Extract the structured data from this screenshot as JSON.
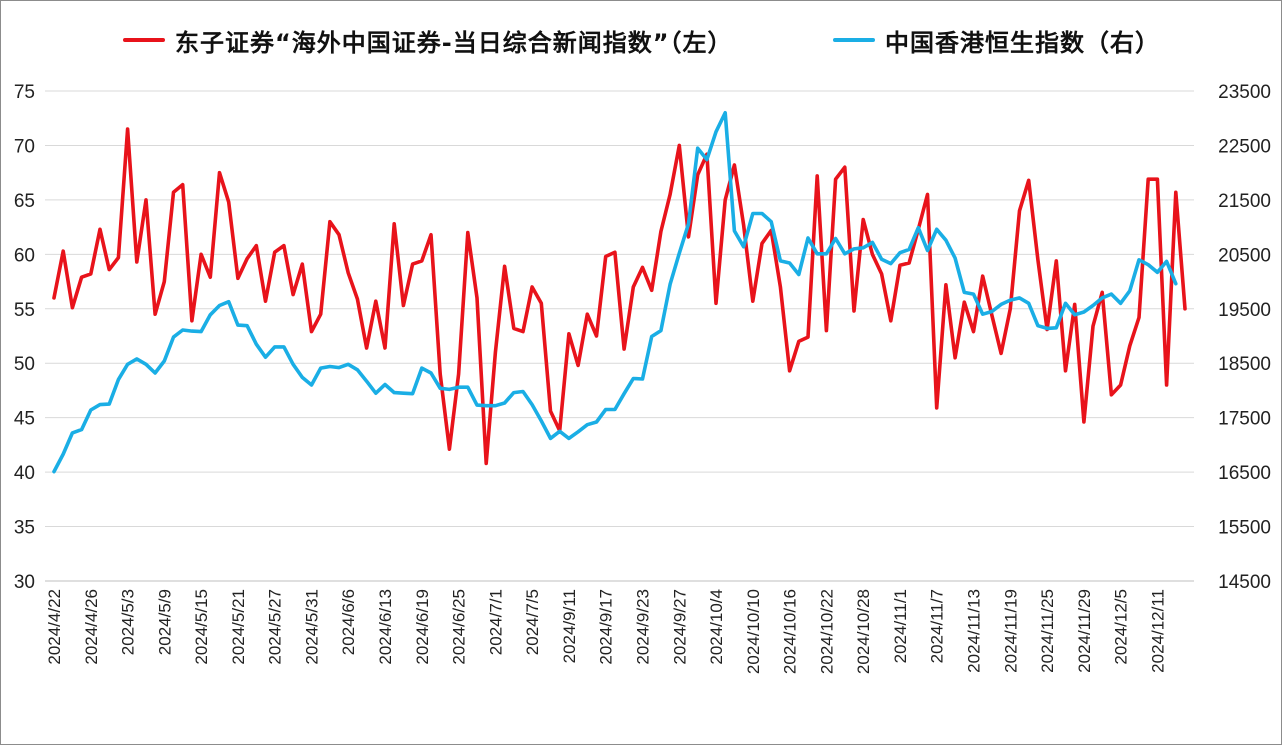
{
  "chart_data": {
    "type": "line",
    "legend_position": "top",
    "grid": true,
    "colors": {
      "left_series": "#e8131b",
      "right_series": "#1aaee5",
      "grid": "#d9d9d9"
    },
    "left_axis": {
      "ylim": [
        30,
        75
      ],
      "ticks": [
        "30",
        "35",
        "40",
        "45",
        "50",
        "55",
        "60",
        "65",
        "70",
        "75"
      ]
    },
    "right_axis": {
      "ylim": [
        14500,
        23500
      ],
      "ticks": [
        "14500",
        "15500",
        "16500",
        "17500",
        "18500",
        "19500",
        "20500",
        "21500",
        "22500",
        "23500"
      ]
    },
    "x_tick_labels": [
      "2024/4/22",
      "2024/4/26",
      "2024/5/3",
      "2024/5/9",
      "2024/5/15",
      "2024/5/21",
      "2024/5/27",
      "2024/5/31",
      "2024/6/6",
      "2024/6/13",
      "2024/6/19",
      "2024/6/25",
      "2024/7/1",
      "2024/7/5",
      "2024/9/11",
      "2024/9/17",
      "2024/9/23",
      "2024/9/27",
      "2024/10/4",
      "2024/10/10",
      "2024/10/16",
      "2024/10/22",
      "2024/10/28",
      "2024/11/1",
      "2024/11/7",
      "2024/11/13",
      "2024/11/19",
      "2024/11/25",
      "2024/11/29",
      "2024/12/5",
      "2024/12/11"
    ],
    "series": [
      {
        "name": "东子证券“海外中国证券-当日综合新闻指数”（左）",
        "axis": "left",
        "values": [
          56.0,
          60.3,
          55.1,
          57.9,
          58.2,
          62.3,
          58.6,
          59.7,
          71.5,
          59.3,
          65.0,
          54.5,
          57.5,
          65.7,
          66.4,
          53.9,
          60.0,
          57.9,
          67.5,
          64.8,
          57.8,
          59.6,
          60.8,
          55.7,
          60.2,
          60.8,
          56.3,
          59.1,
          52.9,
          54.5,
          63.0,
          61.8,
          58.3,
          55.9,
          51.4,
          55.7,
          51.4,
          62.8,
          55.3,
          59.1,
          59.4,
          61.8,
          49.0,
          42.1,
          49.0,
          62.0,
          56.0,
          40.8,
          51.0,
          58.9,
          53.2,
          52.9,
          57.0,
          55.5,
          45.6,
          43.8,
          52.7,
          49.8,
          54.5,
          52.5,
          59.8,
          60.2,
          51.3,
          57.0,
          58.8,
          56.7,
          62.1,
          65.5,
          70.0,
          61.6,
          67.3,
          69.2,
          55.5,
          65.0,
          68.2,
          62.7,
          55.7,
          61.0,
          62.2,
          57.0,
          49.3,
          52.0,
          52.4,
          67.2,
          53.0,
          66.9,
          68.0,
          54.8,
          63.2,
          60.0,
          58.2,
          53.9,
          59.0,
          59.2,
          62.3,
          65.5,
          45.9,
          57.2,
          50.5,
          55.6,
          52.9,
          58.0,
          54.4,
          50.9,
          55.0,
          64.0,
          66.8,
          59.5,
          53.1,
          59.4,
          49.3,
          55.4,
          44.6,
          53.4,
          56.5,
          47.1,
          48.0,
          51.6,
          54.2,
          66.9,
          66.9,
          48.0,
          65.7,
          55.0
        ]
      },
      {
        "name": "中国香港恒生指数（右）",
        "axis": "right",
        "values": [
          16510,
          16830,
          17220,
          17280,
          17640,
          17740,
          17750,
          18200,
          18480,
          18580,
          18480,
          18320,
          18540,
          18980,
          19110,
          19090,
          19080,
          19390,
          19560,
          19630,
          19200,
          19190,
          18850,
          18610,
          18800,
          18800,
          18480,
          18240,
          18100,
          18410,
          18440,
          18420,
          18480,
          18380,
          18170,
          17950,
          18110,
          17960,
          17950,
          17940,
          18410,
          18320,
          18040,
          18020,
          18060,
          18060,
          17730,
          17720,
          17720,
          17770,
          17960,
          17980,
          17740,
          17440,
          17120,
          17250,
          17120,
          17240,
          17370,
          17420,
          17650,
          17650,
          17940,
          18220,
          18210,
          18990,
          19100,
          19950,
          20520,
          21060,
          22450,
          22240,
          22750,
          23100,
          20930,
          20640,
          21250,
          21250,
          21100,
          20380,
          20340,
          20130,
          20800,
          20510,
          20510,
          20790,
          20510,
          20600,
          20620,
          20720,
          20410,
          20330,
          20530,
          20590,
          20990,
          20570,
          20960,
          20760,
          20430,
          19800,
          19770,
          19400,
          19450,
          19580,
          19660,
          19700,
          19600,
          19190,
          19140,
          19150,
          19600,
          19390,
          19440,
          19560,
          19700,
          19770,
          19600,
          19830,
          20400,
          20310,
          20170,
          20370,
          19960
        ]
      }
    ]
  }
}
